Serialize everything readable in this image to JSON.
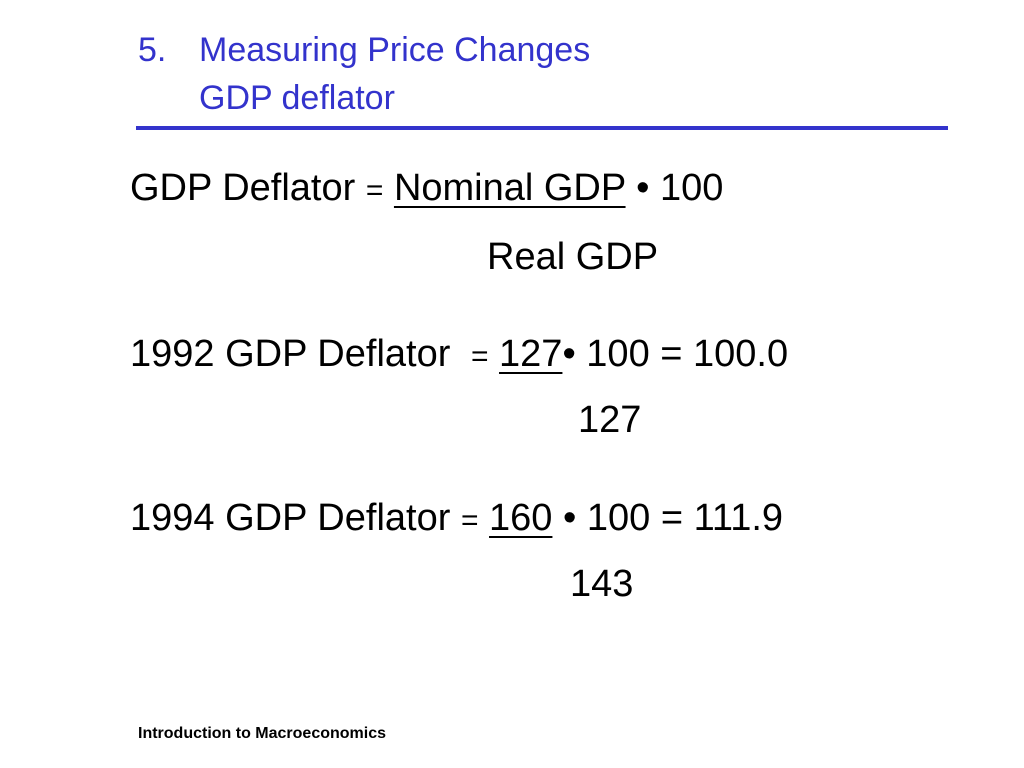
{
  "slide": {
    "title_number": "5.",
    "title_line1": "Measuring Price Changes",
    "title_line2": "GDP deflator",
    "title_color": "#3333cc"
  },
  "formulas": [
    {
      "label": "GDP Deflator",
      "equals": "=",
      "numerator": "Nominal GDP",
      "rest": " • 100",
      "denominator": "Real GDP"
    },
    {
      "label": "1992 GDP Deflator",
      "equals": "=",
      "numerator": "127",
      "rest": "• 100 = 100.0",
      "denominator": "127"
    },
    {
      "label": "1994 GDP Deflator",
      "equals": "=",
      "numerator": "160",
      "rest": " • 100 = 111.9",
      "denominator": "143"
    }
  ],
  "footer": "Introduction to Macroeconomics"
}
